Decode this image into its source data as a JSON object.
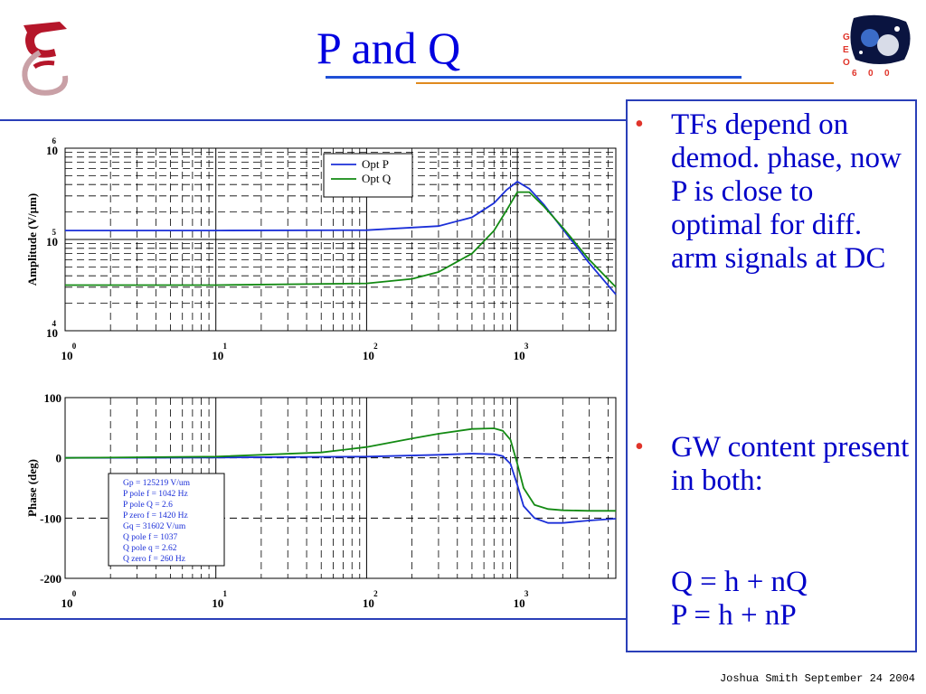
{
  "slide": {
    "title": "P and Q",
    "footer": "Joshua Smith  September 24 2004",
    "logo_right_letters": [
      "G",
      "E",
      "O",
      "6",
      "0",
      "0"
    ]
  },
  "bullets": [
    {
      "text": "TFs depend on demod. phase, now P is close to optimal for diff. arm signals at DC"
    },
    {
      "text": "GW content present in both:",
      "eq1": "Q = h + nQ",
      "eq2": "P = h + nP"
    }
  ],
  "colors": {
    "opt_p": "#1b2fd8",
    "opt_q": "#138a13",
    "accent_blue": "#2a3fb8",
    "accent_orange": "#e08a1e",
    "bullet_red": "#e0342a"
  },
  "chart_data": [
    {
      "type": "line",
      "title": "",
      "xlabel": "",
      "ylabel": "Amplitude (V/µm)",
      "xscale": "log",
      "yscale": "log",
      "xlim": [
        1,
        4500
      ],
      "ylim": [
        10000,
        1000000
      ],
      "x_ticks": [
        "10^0",
        "10^1",
        "10^2",
        "10^3"
      ],
      "y_ticks": [
        "10^4",
        "10^5",
        "10^6"
      ],
      "grid": true,
      "legend": [
        "Opt P",
        "Opt Q"
      ],
      "legend_position": "top-center",
      "series": [
        {
          "name": "Opt P",
          "x": [
            1,
            10,
            100,
            300,
            500,
            700,
            850,
            1000,
            1200,
            1500,
            2000,
            3000,
            4500
          ],
          "y": [
            125219,
            125300,
            126500,
            140000,
            175000,
            250000,
            350000,
            430000,
            360000,
            240000,
            130000,
            55000,
            25000
          ]
        },
        {
          "name": "Opt Q",
          "x": [
            1,
            10,
            100,
            200,
            300,
            500,
            700,
            850,
            1000,
            1200,
            1500,
            2000,
            3000,
            4500
          ],
          "y": [
            31602,
            31650,
            33000,
            37000,
            44000,
            70000,
            125000,
            210000,
            330000,
            330000,
            230000,
            135000,
            60000,
            30000
          ]
        }
      ]
    },
    {
      "type": "line",
      "title": "",
      "xlabel": "",
      "ylabel": "Phase (deg)",
      "xscale": "log",
      "xlim": [
        1,
        4500
      ],
      "ylim": [
        -200,
        100
      ],
      "x_ticks": [
        "10^0",
        "10^1",
        "10^2",
        "10^3"
      ],
      "y_ticks": [
        "100",
        "0",
        "-100",
        "-200"
      ],
      "grid": true,
      "annotation": [
        "Gp = 125219 V/um",
        "P pole f = 1042 Hz",
        "P pole Q = 2.6",
        "P zero f = 1420 Hz",
        "Gq = 31602 V/um",
        "Q pole f = 1037",
        "Q pole q = 2.62",
        "Q zero f = 260 Hz"
      ],
      "series": [
        {
          "name": "Opt P",
          "x": [
            1,
            10,
            100,
            300,
            500,
            700,
            800,
            900,
            1000,
            1100,
            1300,
            1600,
            2000,
            3000,
            4500
          ],
          "y": [
            0,
            0.5,
            2,
            5,
            7,
            6,
            3,
            -10,
            -45,
            -80,
            -100,
            -108,
            -108,
            -104,
            -101
          ]
        },
        {
          "name": "Opt Q",
          "x": [
            1,
            10,
            50,
            100,
            200,
            300,
            500,
            700,
            800,
            900,
            1000,
            1100,
            1300,
            1600,
            2000,
            3000,
            4500
          ],
          "y": [
            0,
            2,
            9,
            18,
            32,
            40,
            48,
            49,
            45,
            30,
            -10,
            -50,
            -78,
            -85,
            -87,
            -88,
            -88
          ]
        }
      ]
    }
  ]
}
